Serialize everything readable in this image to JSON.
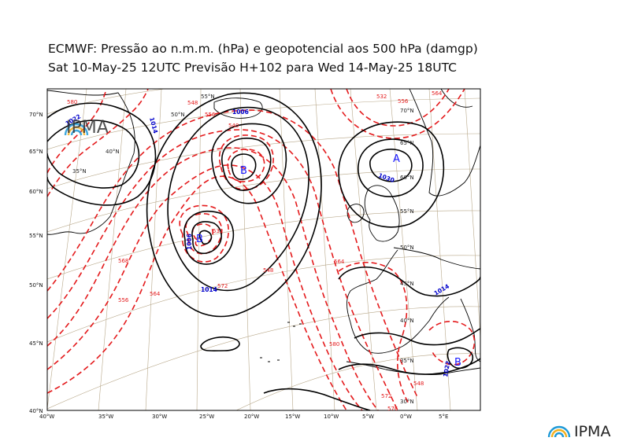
{
  "header": {
    "line1": "ECMWF:  Pressão ao n.m.m. (hPa) e geopotencial aos 500 hPa (damgp)",
    "line2": "Sat 10-May-25 12UTC Previsão H+102 para Wed 14-May-25 18UTC"
  },
  "branding": {
    "inset": "IPMA",
    "corner": "IPMA"
  },
  "axes": {
    "left_lat": [
      "70°N",
      "65°N",
      "60°N",
      "55°N",
      "50°N",
      "45°N",
      "40°N"
    ],
    "bottom_lon": [
      "40°W",
      "35°W",
      "30°W",
      "25°W",
      "20°W",
      "15°W",
      "10°W",
      "5°W",
      "0°W",
      "5°E"
    ]
  },
  "graticule_labels": [
    "55°N",
    "50°N",
    "70°N",
    "65°N",
    "60°N",
    "55°N",
    "50°N",
    "45°N",
    "40°N",
    "35°N",
    "30°N",
    "40°N",
    "35°N"
  ],
  "pressure_centers": [
    {
      "symbol": "B",
      "meaning": "low"
    },
    {
      "symbol": "B",
      "meaning": "low"
    },
    {
      "symbol": "A",
      "meaning": "high"
    },
    {
      "symbol": "B",
      "meaning": "low"
    }
  ],
  "isobar_labels": [
    "1006",
    "1014",
    "1006",
    "1030",
    "1022",
    "1014",
    "1014",
    "1022"
  ],
  "geopotential_labels": [
    "580",
    "556",
    "548",
    "540",
    "532",
    "532",
    "556",
    "564",
    "548",
    "556",
    "564",
    "572",
    "568",
    "572",
    "576",
    "580",
    "564",
    "548"
  ],
  "colors": {
    "isobar": "#000000",
    "geopotential": "#e41a1c",
    "isobar_label": "#0000cc",
    "graticule": "#b8a88a",
    "coast": "#000000"
  }
}
